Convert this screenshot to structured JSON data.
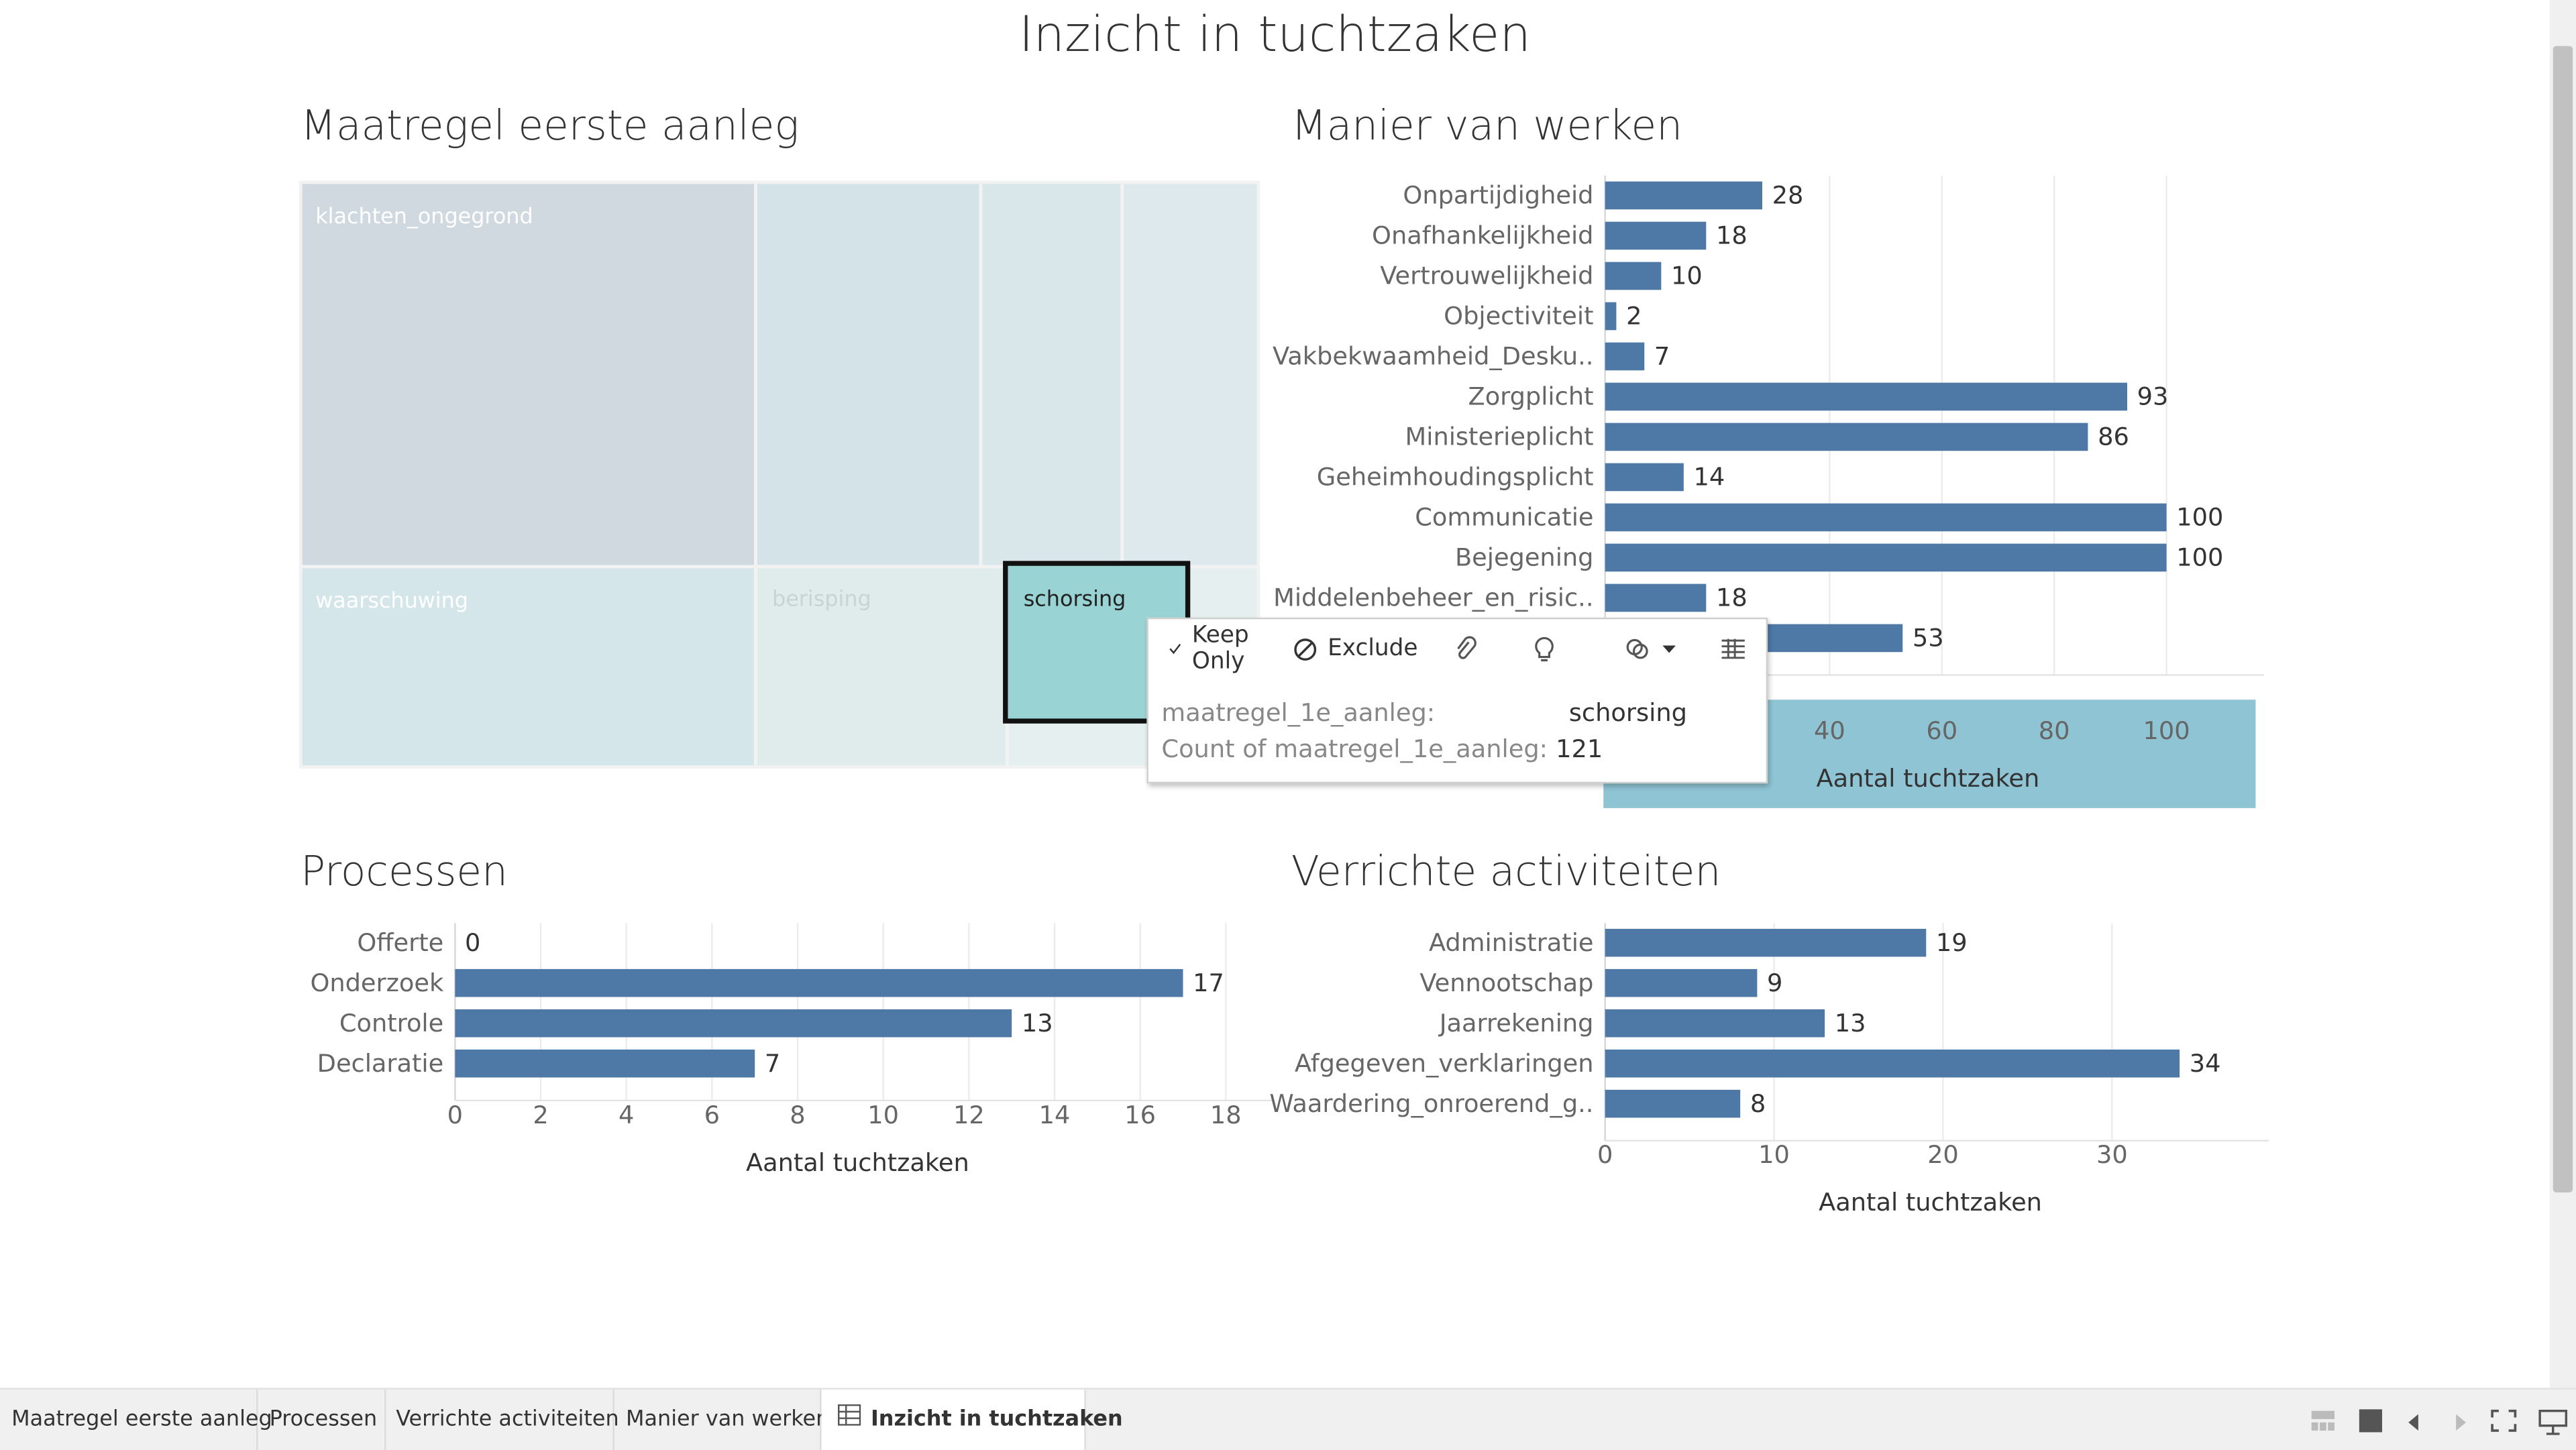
{
  "dashboard_title": "Inzicht in tuchtzaken",
  "treemap": {
    "title": "Maatregel eerste aanleg",
    "cells": [
      "klachten_ongegrond",
      "waarschuwing",
      "berisping",
      "schorsing"
    ]
  },
  "tooltip": {
    "keep_only": "Keep Only",
    "exclude": "Exclude",
    "field_label": "maatregel_1e_aanleg:",
    "field_value": "schorsing",
    "count_label": "Count of maatregel_1e_aanleg:",
    "count_value": "121"
  },
  "chart_data": [
    {
      "type": "bar",
      "title": "Manier van werken",
      "orientation": "horizontal",
      "categories": [
        "Onpartijdigheid",
        "Onafhankelijkheid",
        "Vertrouwelijkheid",
        "Objectiviteit",
        "Vakbekwaamheid_Desku..",
        "Zorgplicht",
        "Ministerieplicht",
        "Geheimhoudingsplicht",
        "Communicatie",
        "Bejegening",
        "Middelenbeheer_en_risic..",
        ""
      ],
      "values": [
        28,
        18,
        10,
        2,
        7,
        93,
        86,
        14,
        100,
        100,
        18,
        53
      ],
      "xlabel": "Aantal tuchtzaken",
      "xticks": [
        40,
        60,
        80,
        100
      ],
      "xlim": [
        0,
        115
      ]
    },
    {
      "type": "bar",
      "title": "Processen",
      "orientation": "horizontal",
      "categories": [
        "Offerte",
        "Onderzoek",
        "Controle",
        "Declaratie"
      ],
      "values": [
        0,
        17,
        13,
        7
      ],
      "xlabel": "Aantal tuchtzaken",
      "xticks": [
        0,
        2,
        4,
        6,
        8,
        10,
        12,
        14,
        16,
        18
      ],
      "xlim": [
        0,
        18.8
      ]
    },
    {
      "type": "bar",
      "title": "Verrichte activiteiten",
      "orientation": "horizontal",
      "categories": [
        "Administratie",
        "Vennootschap",
        "Jaarrekening",
        "Afgegeven_verklaringen",
        "Waardering_onroerend_g.."
      ],
      "values": [
        19,
        9,
        13,
        34,
        8
      ],
      "xlabel": "Aantal tuchtzaken",
      "xticks": [
        0,
        10,
        20,
        30
      ],
      "xlim": [
        0,
        38.5
      ]
    }
  ],
  "tabs": [
    "Maatregel eerste aanleg",
    "Processen",
    "Verrichte activiteiten",
    "Manier van werken",
    "Inzicht in tuchtzaken"
  ],
  "colors": {
    "bar": "#4e79a7",
    "highlight": "#99d3d3",
    "axis_band": "#8ec4d4"
  }
}
